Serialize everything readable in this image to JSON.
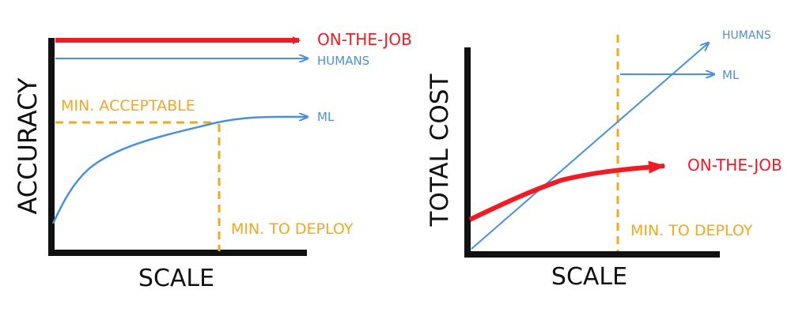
{
  "colors": {
    "axis": "#111111",
    "on_the_job": "#ee1c25",
    "humans": "#4a90d9",
    "ml": "#4a90d9",
    "threshold": "#f0a823"
  },
  "left_panel": {
    "y_axis_label": "ACCURACY",
    "x_axis_label": "SCALE",
    "on_the_job_label": "ON-THE-JOB",
    "humans_label": "HUMANS",
    "ml_label": "ML",
    "min_acceptable_label": "MIN. ACCEPTABLE",
    "min_to_deploy_label": "MIN. TO DEPLOY"
  },
  "right_panel": {
    "y_axis_label": "TOTAL COST",
    "x_axis_label": "SCALE",
    "humans_label": "HUMANS",
    "ml_label": "ML",
    "on_the_job_label": "ON-THE-JOB",
    "min_to_deploy_label": "MIN. TO DEPLOY"
  }
}
